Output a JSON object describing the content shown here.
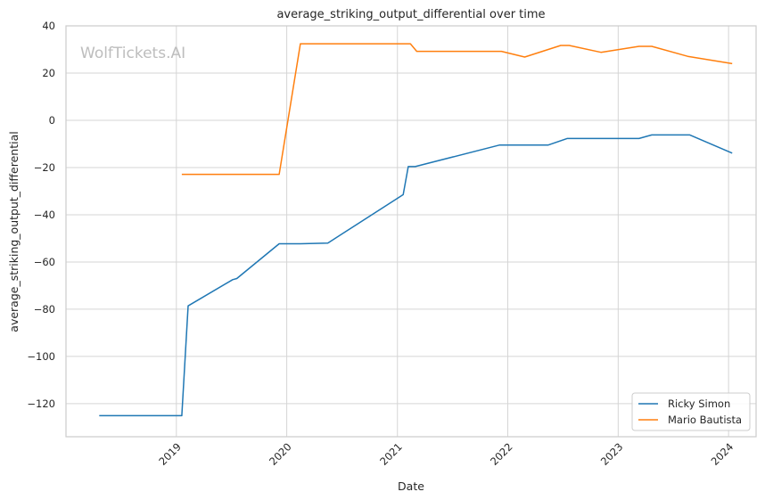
{
  "chart_data": {
    "type": "line",
    "title": "average_striking_output_differential over time",
    "xlabel": "Date",
    "ylabel": "average_striking_output_differential",
    "watermark": "WolfTickets.AI",
    "xlim": [
      "2018-01-01",
      "2024-04-01"
    ],
    "ylim": [
      -134,
      40
    ],
    "yticks": [
      40,
      20,
      0,
      -20,
      -40,
      -60,
      -80,
      -100,
      -120
    ],
    "ytick_labels": [
      "40",
      "20",
      "0",
      "−20",
      "−40",
      "−60",
      "−80",
      "−100",
      "−120"
    ],
    "xticks": [
      "2019-01-01",
      "2020-01-01",
      "2021-01-01",
      "2022-01-01",
      "2023-01-01",
      "2024-01-01"
    ],
    "xtick_labels": [
      "2019",
      "2020",
      "2021",
      "2022",
      "2023",
      "2024"
    ],
    "grid": true,
    "legend_position": "lower-right",
    "series": [
      {
        "name": "Ricky Simon",
        "color": "#1f77b4",
        "points": [
          [
            "2018-04-21",
            -125.1
          ],
          [
            "2019-01-19",
            -125.1
          ],
          [
            "2019-02-09",
            -78.6
          ],
          [
            "2019-07-06",
            -67.5
          ],
          [
            "2019-07-20",
            -67.0
          ],
          [
            "2019-12-07",
            -52.3
          ],
          [
            "2020-02-15",
            -52.3
          ],
          [
            "2020-05-16",
            -52.0
          ],
          [
            "2021-01-20",
            -31.5
          ],
          [
            "2021-02-06",
            -19.6
          ],
          [
            "2021-03-01",
            -19.6
          ],
          [
            "2021-12-04",
            -10.5
          ],
          [
            "2022-05-14",
            -10.5
          ],
          [
            "2022-07-16",
            -7.7
          ],
          [
            "2023-03-11",
            -7.7
          ],
          [
            "2023-04-22",
            -6.2
          ],
          [
            "2023-08-26",
            -6.2
          ],
          [
            "2024-01-13",
            -13.9
          ]
        ]
      },
      {
        "name": "Mario Bautista",
        "color": "#ff7f0e",
        "points": [
          [
            "2019-01-19",
            -22.9
          ],
          [
            "2019-12-07",
            -22.9
          ],
          [
            "2020-02-15",
            32.4
          ],
          [
            "2021-02-13",
            32.4
          ],
          [
            "2021-03-06",
            29.2
          ],
          [
            "2021-12-11",
            29.2
          ],
          [
            "2022-02-26",
            26.8
          ],
          [
            "2022-06-25",
            31.7
          ],
          [
            "2022-07-23",
            31.7
          ],
          [
            "2022-11-05",
            28.8
          ],
          [
            "2023-03-11",
            31.3
          ],
          [
            "2023-04-22",
            31.3
          ],
          [
            "2023-08-19",
            27.1
          ],
          [
            "2024-01-13",
            24.0
          ]
        ]
      }
    ]
  }
}
